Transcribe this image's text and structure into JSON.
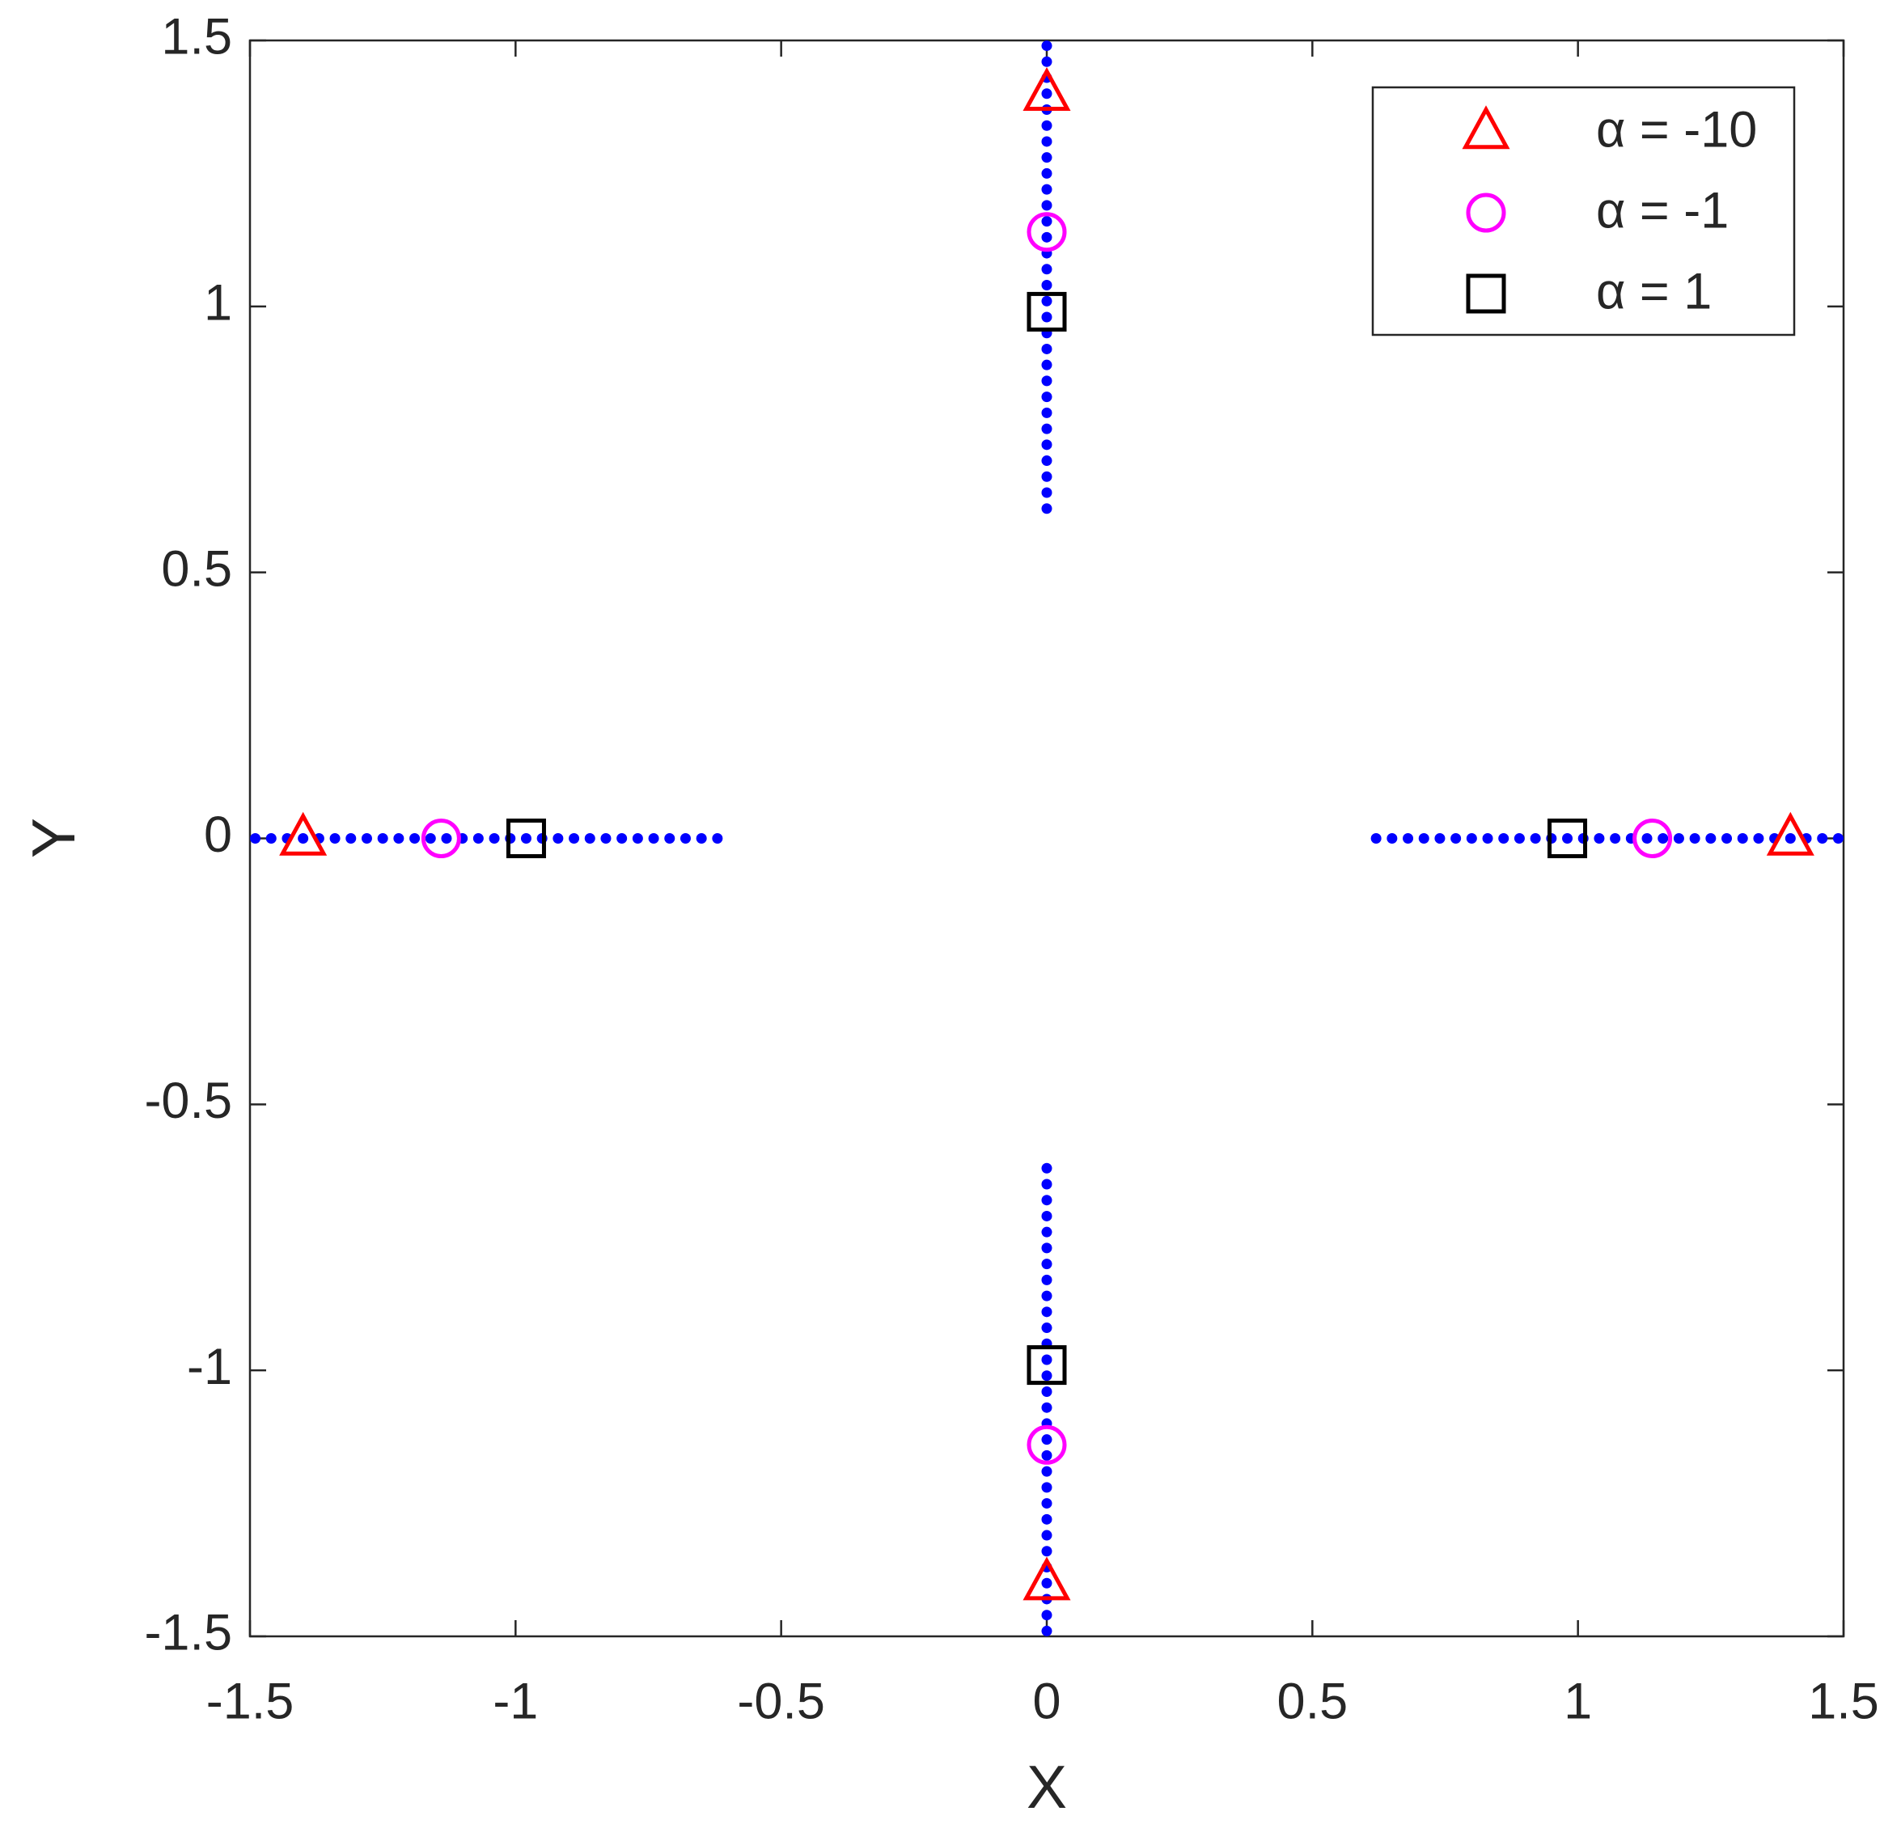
{
  "chart_data": {
    "type": "scatter",
    "xlabel": "X",
    "ylabel": "Y",
    "xlim": [
      -1.5,
      1.5
    ],
    "ylim": [
      -1.5,
      1.5
    ],
    "xticks": [
      -1.5,
      -1,
      -0.5,
      0,
      0.5,
      1,
      1.5
    ],
    "yticks": [
      -1.5,
      -1,
      -0.5,
      0,
      0.5,
      1,
      1.5
    ],
    "legend": "upper right",
    "series": [
      {
        "color": "#0000ff",
        "marker": "dot",
        "x": [
          0.62,
          0.65,
          0.68,
          0.71,
          0.74,
          0.77,
          0.8,
          0.83,
          0.86,
          0.89,
          0.92,
          0.95,
          0.98,
          1.01,
          1.04,
          1.07,
          1.1,
          1.13,
          1.16,
          1.19,
          1.22,
          1.25,
          1.28,
          1.31,
          1.34,
          1.37,
          1.4,
          1.43,
          1.46,
          1.49
        ],
        "y": [
          0,
          0,
          0,
          0,
          0,
          0,
          0,
          0,
          0,
          0,
          0,
          0,
          0,
          0,
          0,
          0,
          0,
          0,
          0,
          0,
          0,
          0,
          0,
          0,
          0,
          0,
          0,
          0,
          0,
          0
        ]
      },
      {
        "color": "#0000ff",
        "marker": "dot",
        "x": [
          -0.62,
          -0.65,
          -0.68,
          -0.71,
          -0.74,
          -0.77,
          -0.8,
          -0.83,
          -0.86,
          -0.89,
          -0.92,
          -0.95,
          -0.98,
          -1.01,
          -1.04,
          -1.07,
          -1.1,
          -1.13,
          -1.16,
          -1.19,
          -1.22,
          -1.25,
          -1.28,
          -1.31,
          -1.34,
          -1.37,
          -1.4,
          -1.43,
          -1.46,
          -1.49
        ],
        "y": [
          0,
          0,
          0,
          0,
          0,
          0,
          0,
          0,
          0,
          0,
          0,
          0,
          0,
          0,
          0,
          0,
          0,
          0,
          0,
          0,
          0,
          0,
          0,
          0,
          0,
          0,
          0,
          0,
          0,
          0
        ]
      },
      {
        "color": "#0000ff",
        "marker": "dot",
        "x": [
          0,
          0,
          0,
          0,
          0,
          0,
          0,
          0,
          0,
          0,
          0,
          0,
          0,
          0,
          0,
          0,
          0,
          0,
          0,
          0,
          0,
          0,
          0,
          0,
          0,
          0,
          0,
          0,
          0,
          0
        ],
        "y": [
          0.62,
          0.65,
          0.68,
          0.71,
          0.74,
          0.77,
          0.8,
          0.83,
          0.86,
          0.89,
          0.92,
          0.95,
          0.98,
          1.01,
          1.04,
          1.07,
          1.1,
          1.13,
          1.16,
          1.19,
          1.22,
          1.25,
          1.28,
          1.31,
          1.34,
          1.37,
          1.4,
          1.43,
          1.46,
          1.49
        ]
      },
      {
        "color": "#0000ff",
        "marker": "dot",
        "x": [
          0,
          0,
          0,
          0,
          0,
          0,
          0,
          0,
          0,
          0,
          0,
          0,
          0,
          0,
          0,
          0,
          0,
          0,
          0,
          0,
          0,
          0,
          0,
          0,
          0,
          0,
          0,
          0,
          0,
          0
        ],
        "y": [
          -0.62,
          -0.65,
          -0.68,
          -0.71,
          -0.74,
          -0.77,
          -0.8,
          -0.83,
          -0.86,
          -0.89,
          -0.92,
          -0.95,
          -0.98,
          -1.01,
          -1.04,
          -1.07,
          -1.1,
          -1.13,
          -1.16,
          -1.19,
          -1.22,
          -1.25,
          -1.28,
          -1.31,
          -1.34,
          -1.37,
          -1.4,
          -1.43,
          -1.46,
          -1.49
        ]
      },
      {
        "name": "α = -10",
        "color": "#ff0000",
        "marker": "triangle",
        "x": [
          -1.4,
          1.4,
          0,
          0
        ],
        "y": [
          0,
          0,
          1.4,
          -1.4
        ]
      },
      {
        "name": "α = -1",
        "color": "#ff00ff",
        "marker": "circle",
        "x": [
          -1.14,
          1.14,
          0,
          0
        ],
        "y": [
          0,
          0,
          1.14,
          -1.14
        ]
      },
      {
        "name": "α = 1",
        "color": "#000000",
        "marker": "square",
        "x": [
          -0.98,
          0.98,
          0,
          0
        ],
        "y": [
          0,
          0,
          0.99,
          -0.99
        ]
      }
    ]
  }
}
